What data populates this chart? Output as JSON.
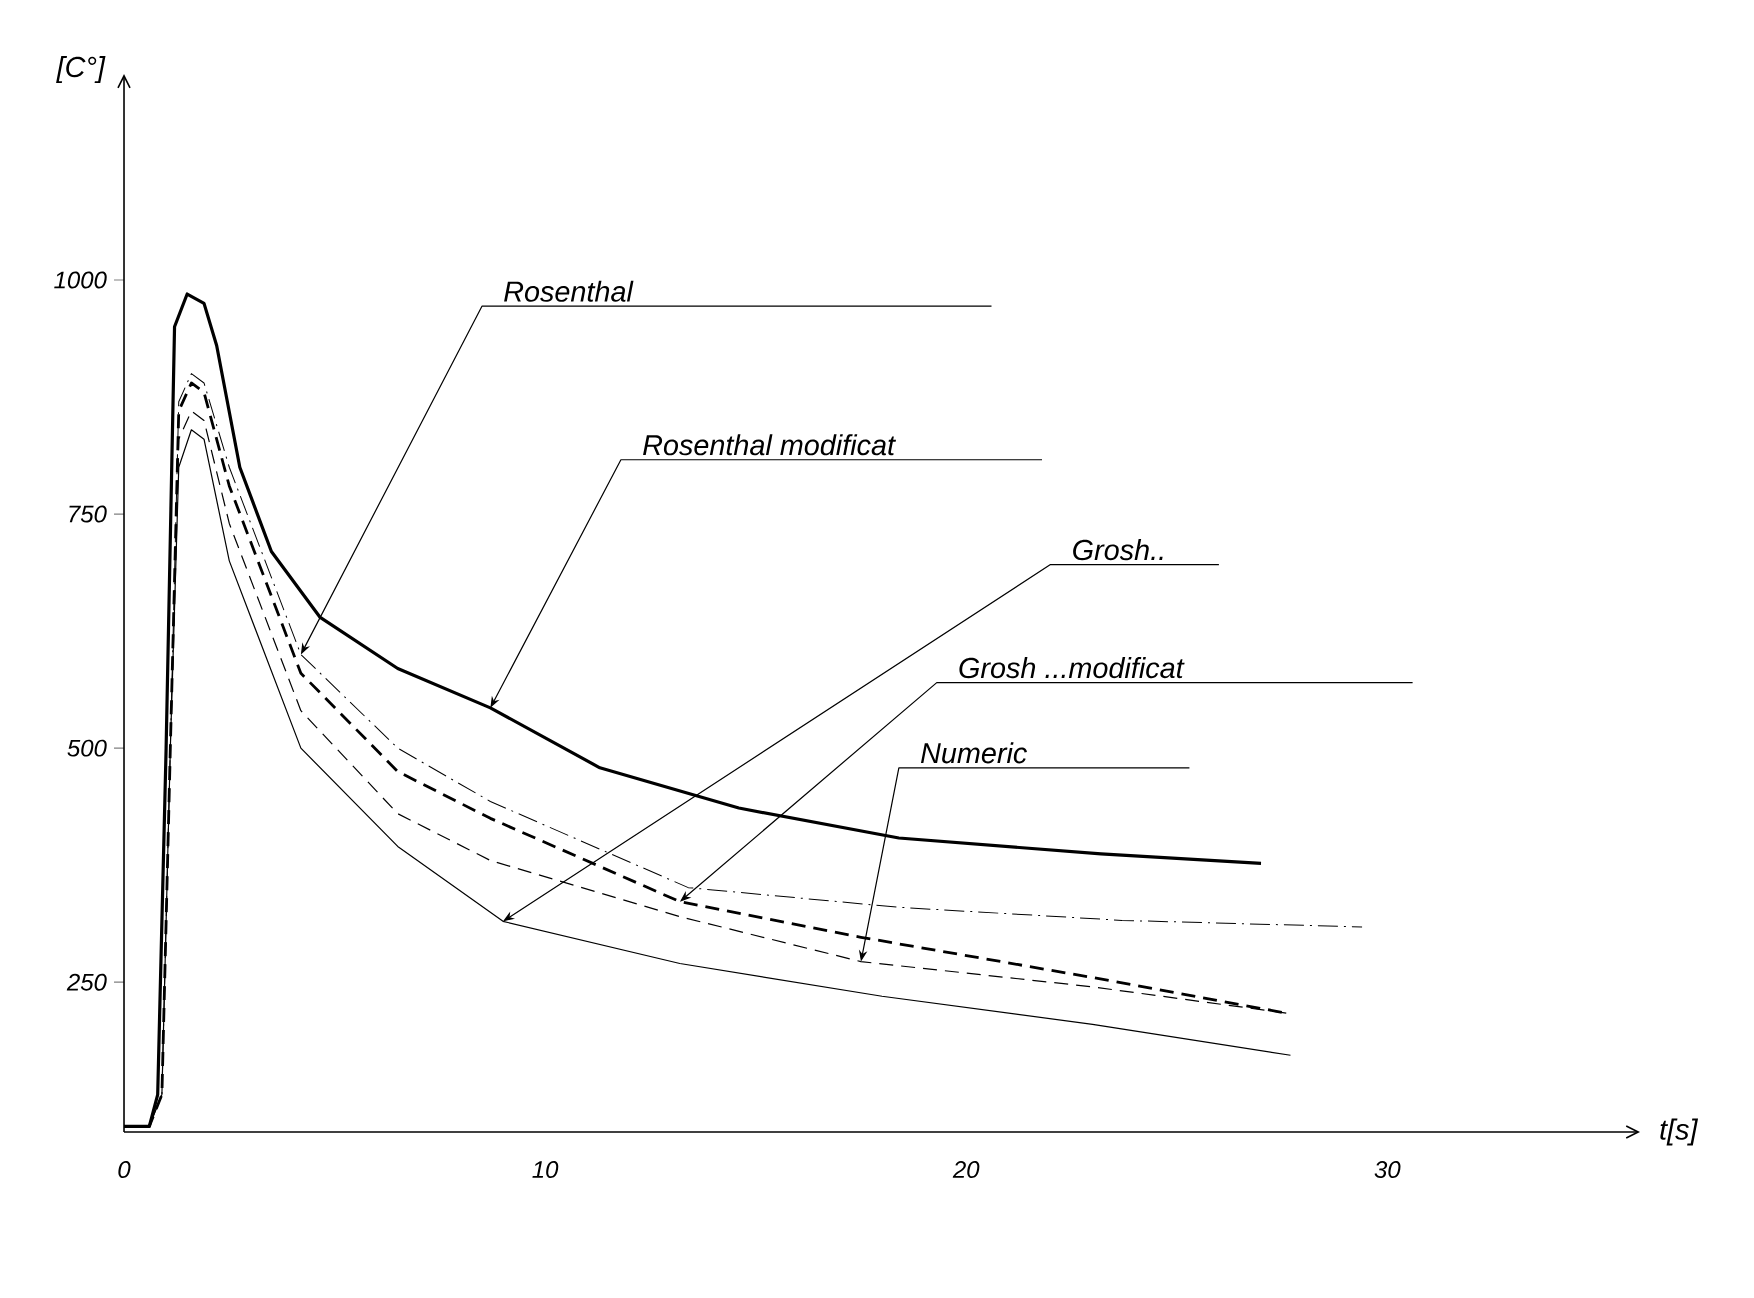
{
  "chart_data": {
    "type": "line",
    "xlabel": "t[s]",
    "ylabel": "[C°]",
    "xlim": [
      0,
      36
    ],
    "ylim": [
      90,
      1220
    ],
    "xticks": [
      0,
      10,
      20,
      30
    ],
    "yticks": [
      250,
      500,
      750,
      1000
    ],
    "grid": false,
    "legend": false,
    "marker": "none",
    "annotations": [
      {
        "text": "Rosenthal",
        "x": 4.2,
        "y": 600
      },
      {
        "text": "Rosenthal modificat",
        "x": 8.7,
        "y": 543
      },
      {
        "text": "Grosh..",
        "x": 9.0,
        "y": 315
      },
      {
        "text": "Grosh ...modificat",
        "x": 13.2,
        "y": 336
      },
      {
        "text": "Numeric",
        "x": 17.5,
        "y": 272
      }
    ],
    "series": [
      {
        "color": "#000000",
        "line_style": "dashdot",
        "x": [
          0,
          0.6,
          0.9,
          1.1,
          1.3,
          1.6,
          1.9,
          2.5,
          4.2,
          6.5,
          8.7,
          13.4,
          18.4,
          23.7,
          29.4
        ],
        "values": [
          96,
          96,
          130,
          500,
          870,
          900,
          890,
          800,
          600,
          500,
          443,
          351,
          330,
          316,
          309
        ]
      },
      {
        "color": "#000000",
        "line_style": "solid",
        "x": [
          0,
          0.6,
          0.8,
          1.0,
          1.2,
          1.5,
          1.9,
          2.2,
          2.75,
          3.5,
          4.65,
          6.5,
          8.7,
          11.3,
          14.6,
          18.4,
          23.2,
          27
        ],
        "values": [
          96,
          96,
          130,
          500,
          950,
          985,
          975,
          930,
          800,
          710,
          640,
          585,
          543,
          479,
          436,
          404,
          387,
          377
        ]
      },
      {
        "color": "#000000",
        "line_style": "solid",
        "x": [
          0,
          0.6,
          0.9,
          1.1,
          1.3,
          1.6,
          1.9,
          2.5,
          4.2,
          6.5,
          9.0,
          13.2,
          18,
          23,
          27.7
        ],
        "values": [
          96,
          96,
          130,
          500,
          800,
          840,
          830,
          700,
          500,
          395,
          315,
          270,
          235,
          205,
          172
        ]
      },
      {
        "color": "#000000",
        "line_style": "dashed",
        "x": [
          0,
          0.6,
          0.9,
          1.1,
          1.3,
          1.6,
          1.9,
          2.5,
          4.2,
          6.5,
          8.7,
          13.2,
          17.5,
          23,
          27.6
        ],
        "values": [
          96,
          96,
          130,
          500,
          860,
          890,
          880,
          780,
          580,
          475,
          425,
          336,
          298,
          255,
          217
        ]
      },
      {
        "color": "#000000",
        "line_style": "dashed",
        "x": [
          0,
          0.6,
          0.9,
          1.1,
          1.3,
          1.6,
          1.9,
          2.5,
          4.2,
          6.5,
          8.7,
          13.2,
          17.5,
          23,
          27.6
        ],
        "values": [
          96,
          96,
          130,
          500,
          830,
          860,
          850,
          740,
          540,
          430,
          380,
          320,
          272,
          245,
          217
        ]
      }
    ]
  }
}
